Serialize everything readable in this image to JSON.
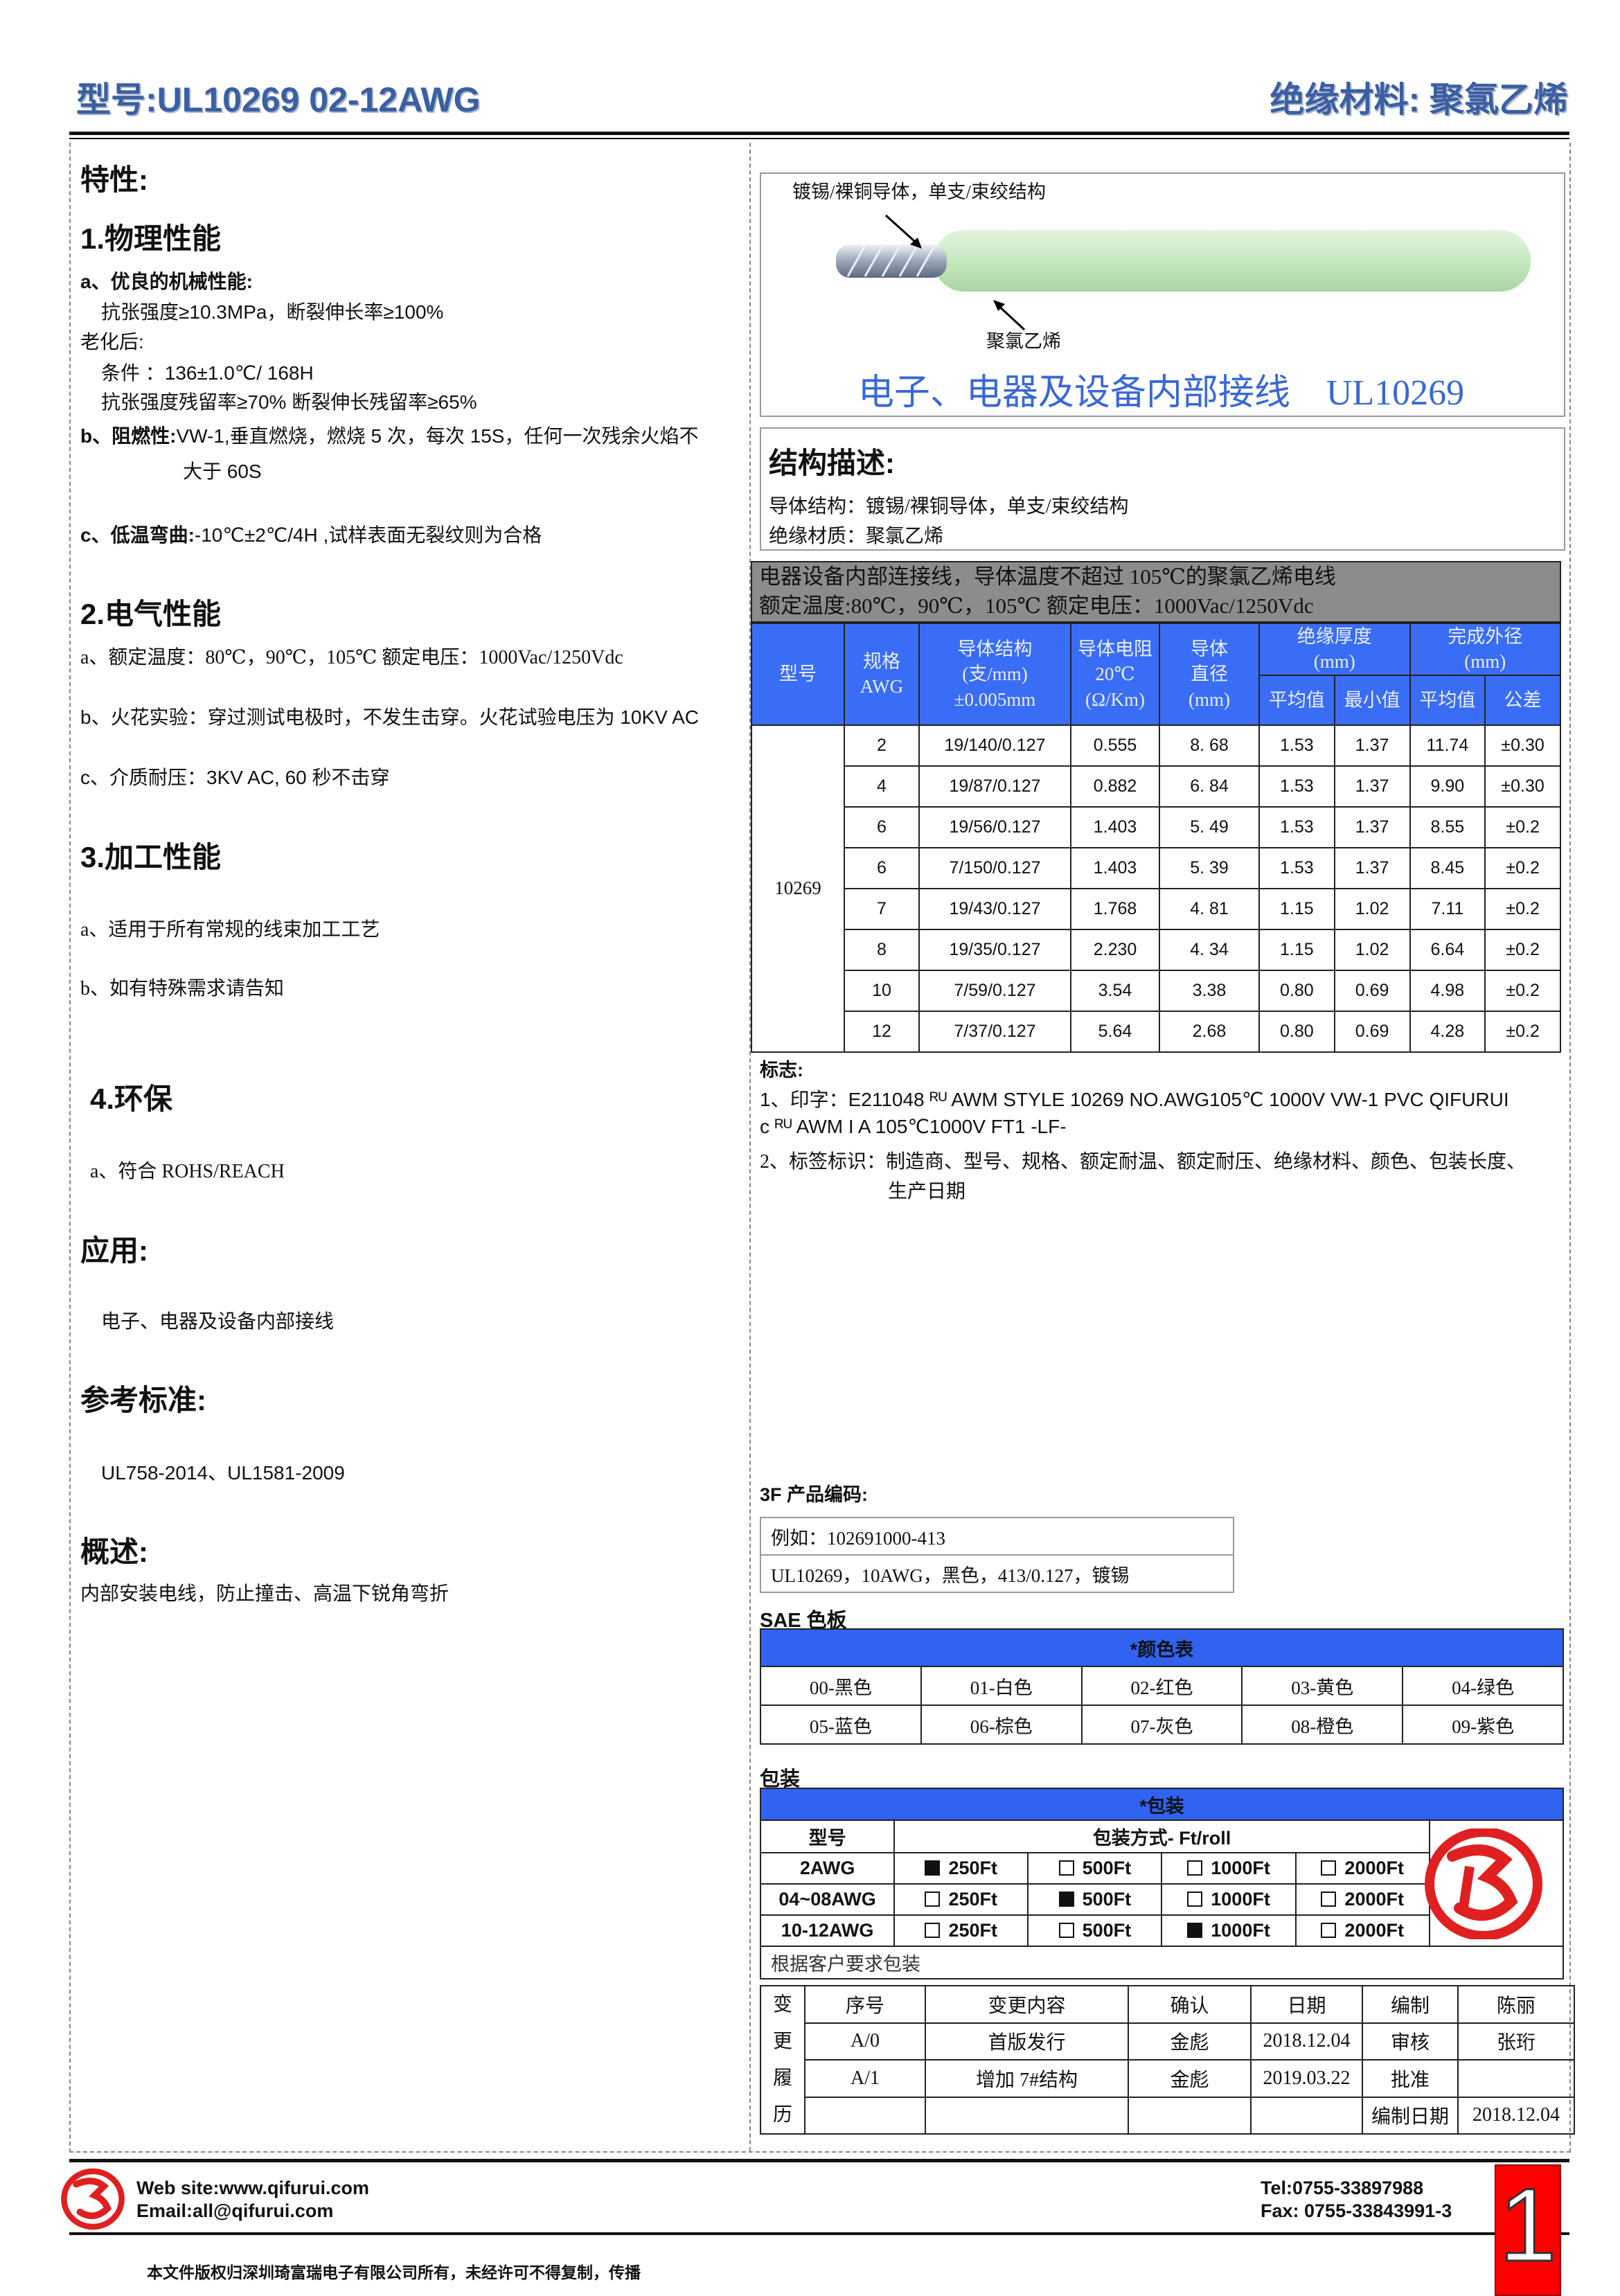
{
  "header": {
    "model": "型号:UL10269  02-12AWG",
    "material": "绝缘材料: 聚氯乙烯"
  },
  "left": {
    "properties_title": "特性:",
    "physical": {
      "title": "1.物理性能",
      "a_title": "a、优良的机械性能:",
      "a_line1": "抗张强度≥10.3MPa，断裂伸长率≥100%",
      "aging": "老化后:",
      "cond": "条件 ：136±1.0℃/ 168H",
      "retention": "抗张强度残留率≥70%  断裂伸长残留率≥65%",
      "b_label": "b、阻燃性:",
      "b_text": "VW-1,垂直燃烧，燃烧 5 次，每次 15S，任何一次残余火焰不",
      "b_cont": "大于 60S",
      "c_label": "c、低温弯曲:",
      "c_text": "-10℃±2℃/4H ,试样表面无裂纹则为合格"
    },
    "electrical": {
      "title": "2.电气性能",
      "a": "a、额定温度：80℃，90℃，105℃   额定电压：1000Vac/1250Vdc",
      "b": "b、火花实验：穿过测试电极时，不发生击穿。火花试验电压为 10KV AC",
      "c": "c、介质耐压：3KV AC, 60  秒不击穿"
    },
    "processing": {
      "title": "3.加工性能",
      "a": "a、适用于所有常规的线束加工工艺",
      "b": "b、如有特殊需求请告知"
    },
    "env": {
      "title": "4.环保",
      "a": "a、符合 ROHS/REACH"
    },
    "application": {
      "title": "应用:",
      "text": "电子、电器及设备内部接线"
    },
    "standards": {
      "title": "参考标准:",
      "text": "UL758-2014、UL1581-2009"
    },
    "overview": {
      "title": "概述:",
      "text": "内部安装电线，防止撞击、高温下锐角弯折"
    }
  },
  "figure": {
    "conductor_label": "镀锡/裸铜导体，单支/束绞结构",
    "insulation_label": "聚氯乙烯",
    "caption": "电子、电器及设备内部接线    UL10269",
    "wire_color": "#c5e8c0"
  },
  "structure": {
    "title": "结构描述:",
    "line1": "导体结构：镀锡/裸铜导体，单支/束绞结构",
    "line2": "绝缘材质：聚氯乙烯"
  },
  "spec": {
    "band1": "电器设备内部连接线，导体温度不超过 105℃的聚氯乙烯电线",
    "band2": "额定温度:80℃，90℃，105℃  额定电压：1000Vac/1250Vdc",
    "headers": {
      "model": "型号",
      "awg": "规格\nAWG",
      "structure": "导体结构\n(支/mm)\n±0.005mm",
      "resistance": "导体电阻\n20℃\n(Ω/Km)",
      "diameter": "导体\n直径\n(mm)",
      "insulation": "绝缘厚度\n(mm)",
      "od": "完成外径\n(mm)",
      "avg": "平均值",
      "min": "最小值",
      "od_avg": "平均值",
      "tol": "公差"
    },
    "model_value": "10269",
    "rows": [
      [
        "2",
        "19/140/0.127",
        "0.555",
        "8. 68",
        "1.53",
        "1.37",
        "11.74",
        "±0.30"
      ],
      [
        "4",
        "19/87/0.127",
        "0.882",
        "6. 84",
        "1.53",
        "1.37",
        "9.90",
        "±0.30"
      ],
      [
        "6",
        "19/56/0.127",
        "1.403",
        "5. 49",
        "1.53",
        "1.37",
        "8.55",
        "±0.2"
      ],
      [
        "6",
        "7/150/0.127",
        "1.403",
        "5. 39",
        "1.53",
        "1.37",
        "8.45",
        "±0.2"
      ],
      [
        "7",
        "19/43/0.127",
        "1.768",
        "4. 81",
        "1.15",
        "1.02",
        "7.11",
        "±0.2"
      ],
      [
        "8",
        "19/35/0.127",
        "2.230",
        "4. 34",
        "1.15",
        "1.02",
        "6.64",
        "±0.2"
      ],
      [
        "10",
        "7/59/0.127",
        "3.54",
        "3.38",
        "0.80",
        "0.69",
        "4.98",
        "±0.2"
      ],
      [
        "12",
        "7/37/0.127",
        "5.64",
        "2.68",
        "0.80",
        "0.69",
        "4.28",
        "±0.2"
      ]
    ],
    "header_color": "#3a6df5",
    "band_color": "#8c8c8c"
  },
  "marking": {
    "title": "标志:",
    "line1": "1、印字：E211048  ᴿᵁ  AWM STYLE 10269 NO.AWG105℃  1000V VW-1 PVC QIFURUI",
    "line2": "c ᴿᵁ AWM I A 105℃1000V FT1 -LF-",
    "line3": "2、标签标识：制造商、型号、规格、额定耐温、额定耐压、绝缘材料、颜色、包装长度、",
    "line4": "生产日期"
  },
  "code": {
    "title": "3F 产品编码:",
    "example": "例如：102691000-413",
    "desc": "UL10269，10AWG，黑色，413/0.127，镀锡"
  },
  "sae": {
    "title": "SAE 色板",
    "header": "*颜色表",
    "rows": [
      [
        "00-黑色",
        "01-白色",
        "02-红色",
        "03-黄色",
        "04-绿色"
      ],
      [
        "05-蓝色",
        "06-棕色",
        "07-灰色",
        "08-橙色",
        "09-紫色"
      ]
    ]
  },
  "packing": {
    "title": "包装",
    "header": "*包装",
    "col_model": "型号",
    "col_method": "包装方式- Ft/roll",
    "options": [
      "250Ft",
      "500Ft",
      "1000Ft",
      "2000Ft"
    ],
    "rows": [
      {
        "model": "2AWG",
        "selected": 0
      },
      {
        "model": "04~08AWG",
        "selected": 1
      },
      {
        "model": "10-12AWG",
        "selected": 2
      }
    ],
    "note": "根据客户要求包装"
  },
  "changes": {
    "side": "变更履历",
    "headers": [
      "序号",
      "变更内容",
      "确认",
      "日期",
      "编制",
      "陈丽"
    ],
    "rows": [
      [
        "A/0",
        "首版发行",
        "金彪",
        "2018.12.04",
        "审核",
        "张珩"
      ],
      [
        "A/1",
        "增加 7#结构",
        "金彪",
        "2019.03.22",
        "批准",
        ""
      ],
      [
        "",
        "",
        "",
        "",
        "编制日期",
        "2018.12.04"
      ]
    ]
  },
  "footer": {
    "website": "Web site:www.qifurui.com",
    "email": "Email:all@qifurui.com",
    "tel": "Tel:0755-33897988",
    "fax": "Fax: 0755-33843991-3",
    "copyright": "本文件版权归深圳琦富瑞电子有限公司所有，未经许可不得复制，传播",
    "page": "1",
    "page_color": "#ff0000"
  }
}
